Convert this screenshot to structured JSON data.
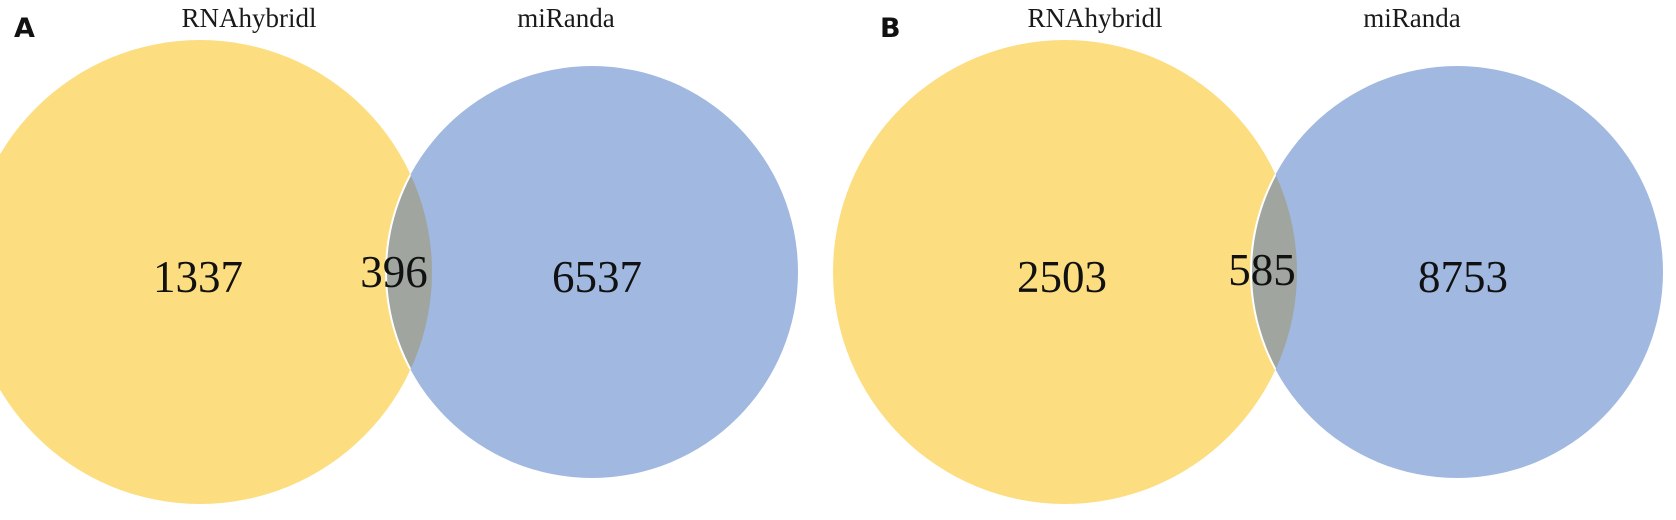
{
  "colors": {
    "set_a": "#FCDD7F",
    "set_b": "#A1B8E0",
    "overlap": "#A0A69F",
    "outline": "#ffffff",
    "text": "#111111"
  },
  "panels": [
    {
      "letter": "A",
      "left_label": "RNAhybridl",
      "right_label": "miRanda",
      "left_only": "1337",
      "overlap": "396",
      "right_only": "6537"
    },
    {
      "letter": "B",
      "left_label": "RNAhybridl",
      "right_label": "miRanda",
      "left_only": "2503",
      "overlap": "585",
      "right_only": "8753"
    }
  ]
}
